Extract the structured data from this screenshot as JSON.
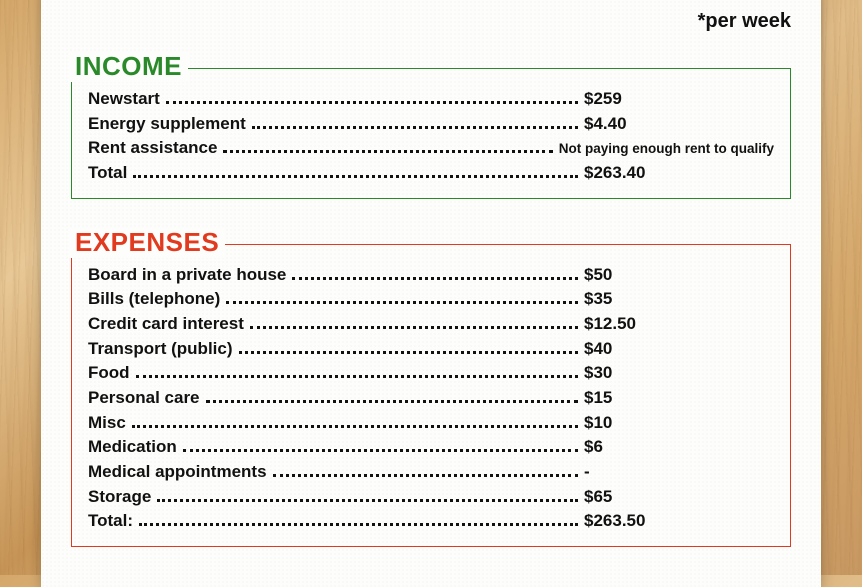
{
  "note": "*per week",
  "income": {
    "title": "INCOME",
    "color": "#2a8a2a",
    "rows": [
      {
        "label": "Newstart",
        "value": "$259"
      },
      {
        "label": "Energy supplement",
        "value": "$4.40"
      },
      {
        "label": "Rent assistance",
        "value": "Not paying enough rent to qualify",
        "small": true
      },
      {
        "label": "Total",
        "value": "$263.40"
      }
    ]
  },
  "expenses": {
    "title": "EXPENSES",
    "color": "#e13a1e",
    "rows": [
      {
        "label": "Board in a private house",
        "value": "$50"
      },
      {
        "label": "Bills (telephone)",
        "value": "$35"
      },
      {
        "label": "Credit card interest",
        "value": "$12.50"
      },
      {
        "label": "Transport (public)",
        "value": "$40"
      },
      {
        "label": "Food",
        "value": "$30"
      },
      {
        "label": "Personal care",
        "value": "$15"
      },
      {
        "label": "Misc",
        "value": "$10"
      },
      {
        "label": "Medication",
        "value": "$6"
      },
      {
        "label": "Medical appointments",
        "value": "-"
      },
      {
        "label": "Storage",
        "value": " $65"
      },
      {
        "label": "Total:",
        "value": "$263.50"
      }
    ]
  }
}
